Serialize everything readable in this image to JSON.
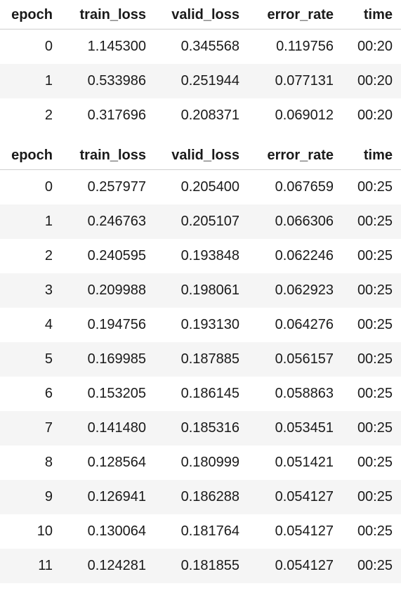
{
  "tables": [
    {
      "headers": [
        "epoch",
        "train_loss",
        "valid_loss",
        "error_rate",
        "time"
      ],
      "rows": [
        [
          "0",
          "1.145300",
          "0.345568",
          "0.119756",
          "00:20"
        ],
        [
          "1",
          "0.533986",
          "0.251944",
          "0.077131",
          "00:20"
        ],
        [
          "2",
          "0.317696",
          "0.208371",
          "0.069012",
          "00:20"
        ]
      ]
    },
    {
      "headers": [
        "epoch",
        "train_loss",
        "valid_loss",
        "error_rate",
        "time"
      ],
      "rows": [
        [
          "0",
          "0.257977",
          "0.205400",
          "0.067659",
          "00:25"
        ],
        [
          "1",
          "0.246763",
          "0.205107",
          "0.066306",
          "00:25"
        ],
        [
          "2",
          "0.240595",
          "0.193848",
          "0.062246",
          "00:25"
        ],
        [
          "3",
          "0.209988",
          "0.198061",
          "0.062923",
          "00:25"
        ],
        [
          "4",
          "0.194756",
          "0.193130",
          "0.064276",
          "00:25"
        ],
        [
          "5",
          "0.169985",
          "0.187885",
          "0.056157",
          "00:25"
        ],
        [
          "6",
          "0.153205",
          "0.186145",
          "0.058863",
          "00:25"
        ],
        [
          "7",
          "0.141480",
          "0.185316",
          "0.053451",
          "00:25"
        ],
        [
          "8",
          "0.128564",
          "0.180999",
          "0.051421",
          "00:25"
        ],
        [
          "9",
          "0.126941",
          "0.186288",
          "0.054127",
          "00:25"
        ],
        [
          "10",
          "0.130064",
          "0.181764",
          "0.054127",
          "00:25"
        ],
        [
          "11",
          "0.124281",
          "0.181855",
          "0.054127",
          "00:25"
        ]
      ]
    }
  ]
}
